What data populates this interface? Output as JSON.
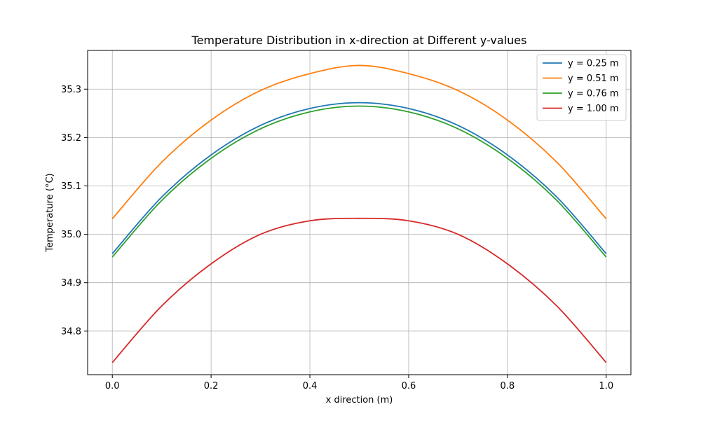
{
  "chart_data": {
    "type": "line",
    "title": "Temperature Distribution in x-direction at Different y-values",
    "xlabel": "x direction (m)",
    "ylabel": "Temperature (°C)",
    "xlim": [
      -0.05,
      1.05
    ],
    "ylim": [
      34.71,
      35.38
    ],
    "x_ticks": [
      0.0,
      0.2,
      0.4,
      0.6,
      0.8,
      1.0
    ],
    "x_tick_labels": [
      "0.0",
      "0.2",
      "0.4",
      "0.6",
      "0.8",
      "1.0"
    ],
    "y_ticks": [
      34.8,
      34.9,
      35.0,
      35.1,
      35.2,
      35.3
    ],
    "y_tick_labels": [
      "34.8",
      "34.9",
      "35.0",
      "35.1",
      "35.2",
      "35.3"
    ],
    "grid": true,
    "legend_position": "top-right",
    "x": [
      0.0,
      0.1,
      0.2,
      0.3,
      0.4,
      0.5,
      0.6,
      0.7,
      0.8,
      0.9,
      1.0
    ],
    "series": [
      {
        "name": "y = 0.25 m",
        "color": "#1f77b4",
        "values": [
          34.96,
          35.077,
          35.164,
          35.225,
          35.26,
          35.272,
          35.26,
          35.225,
          35.164,
          35.077,
          34.96
        ]
      },
      {
        "name": "y = 0.51 m",
        "color": "#ff7f0e",
        "values": [
          35.032,
          35.149,
          35.236,
          35.297,
          35.332,
          35.349,
          35.332,
          35.297,
          35.236,
          35.149,
          35.032
        ]
      },
      {
        "name": "y = 0.76 m",
        "color": "#2ca02c",
        "values": [
          34.953,
          35.07,
          35.157,
          35.218,
          35.253,
          35.265,
          35.253,
          35.218,
          35.157,
          35.07,
          34.953
        ]
      },
      {
        "name": "y = 1.00 m",
        "color": "#d62728",
        "values": [
          34.735,
          34.852,
          34.939,
          35.0,
          35.028,
          35.033,
          35.028,
          35.0,
          34.939,
          34.852,
          34.735
        ]
      }
    ]
  }
}
